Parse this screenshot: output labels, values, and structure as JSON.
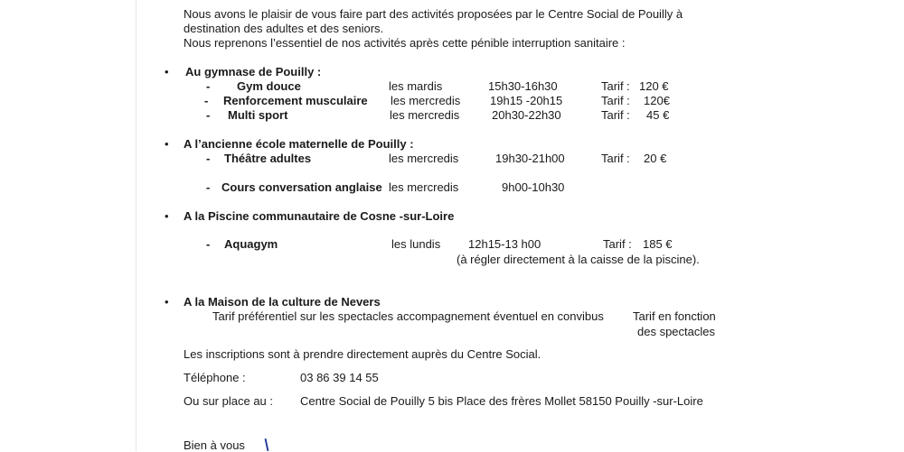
{
  "intro": [
    "Nous avons le plaisir de vous faire part des activités proposées par le Centre Social de Pouilly à",
    "destination des adultes et des seniors.",
    "Nous reprenons l’essentiel de nos activités après cette pénible interruption sanitaire :"
  ],
  "bullet": "•",
  "dash": "-",
  "sections": [
    {
      "heading": "Au gymnase de Pouilly :",
      "rows": [
        {
          "name": "Gym douce",
          "day": "les mardis",
          "time": "15h30-16h30",
          "tarif_label": "Tarif :",
          "tarif": "120 €"
        },
        {
          "name": "Renforcement musculaire",
          "day": "les mercredis",
          "time": "19h15 -20h15",
          "tarif_label": "Tarif :",
          "tarif": "120€"
        },
        {
          "name": "Multi sport",
          "day": "les  mercredis",
          "time": "20h30-22h30",
          "tarif_label": "Tarif :",
          "tarif": "45 €"
        }
      ]
    },
    {
      "heading": "A l’ancienne  école  maternelle de Pouilly :",
      "rows": [
        {
          "name": "Théâtre adultes",
          "day": "les mercredis",
          "time": "19h30-21h00",
          "tarif_label": "Tarif :",
          "tarif": "20 €"
        },
        {
          "name": "Cours conversation anglaise",
          "day": "les mercredis",
          "time": "9h00-10h30"
        }
      ]
    },
    {
      "heading": "A la Piscine communautaire de Cosne -sur-Loire",
      "rows": [
        {
          "name": "Aquagym",
          "day": "les lundis",
          "time": "12h15-13 h00",
          "tarif_label": "Tarif :",
          "tarif": "185 €",
          "note": "(à régler directement à la caisse de la piscine)."
        }
      ]
    },
    {
      "heading": "A la Maison de la culture de Nevers",
      "text": "Tarif préférentiel sur les spectacles accompagnement  éventuel en convibus",
      "tarif_line1": "Tarif en fonction",
      "tarif_line2": "des spectacles"
    }
  ],
  "inscriptions": "Les inscriptions sont à prendre directement auprès du Centre Social.",
  "phone_label": "Téléphone :",
  "phone": "03 86 39 14 55",
  "place_label": "Ou sur place  au :",
  "place": "Centre Social de Pouilly  5 bis  Place des frères Mollet  58150 Pouilly -sur-Loire",
  "closing": "Bien à vous",
  "colors": {
    "text": "#1a1a1a",
    "pen": "#2a3f9a"
  }
}
